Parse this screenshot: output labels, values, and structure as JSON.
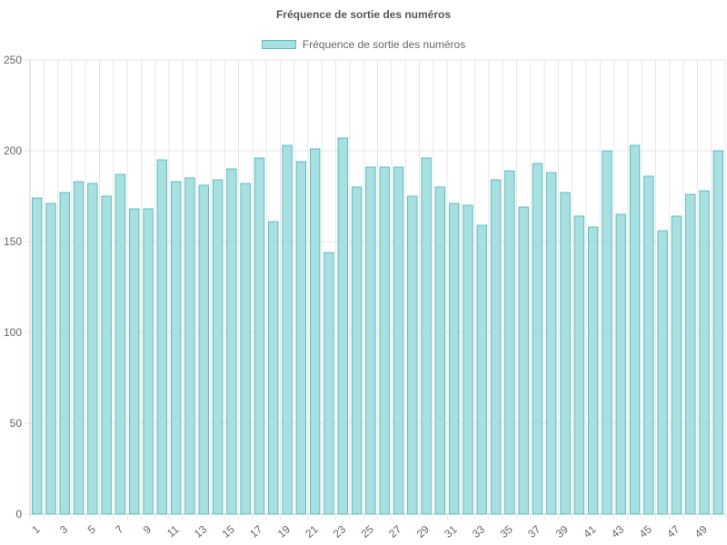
{
  "colors": {
    "bar_fill": "#a8e0e2",
    "bar_stroke": "#5cbcbd",
    "grid": "#e6e6e6",
    "text": "#666666"
  },
  "chart_data": {
    "type": "bar",
    "title": "Fréquence de sortie des numéros",
    "xlabel": "",
    "ylabel": "",
    "ylim": [
      0,
      250
    ],
    "y_ticks": [
      0,
      50,
      100,
      150,
      200,
      250
    ],
    "grid": true,
    "legend_position": "top-center",
    "categories": [
      1,
      2,
      3,
      4,
      5,
      6,
      7,
      8,
      9,
      10,
      11,
      12,
      13,
      14,
      15,
      16,
      17,
      18,
      19,
      20,
      21,
      22,
      23,
      24,
      25,
      26,
      27,
      28,
      29,
      30,
      31,
      32,
      33,
      34,
      35,
      36,
      37,
      38,
      39,
      40,
      41,
      42,
      43,
      44,
      45,
      46,
      47,
      48,
      49,
      50
    ],
    "x_tick_labels": [
      "1",
      "3",
      "5",
      "7",
      "9",
      "11",
      "13",
      "15",
      "17",
      "19",
      "21",
      "23",
      "25",
      "27",
      "29",
      "31",
      "33",
      "35",
      "37",
      "39",
      "41",
      "43",
      "45",
      "47",
      "49"
    ],
    "series": [
      {
        "name": "Fréquence de sortie des numéros",
        "values": [
          174,
          171,
          177,
          183,
          182,
          175,
          187,
          168,
          168,
          195,
          183,
          185,
          181,
          184,
          190,
          182,
          196,
          161,
          203,
          194,
          201,
          144,
          207,
          180,
          191,
          191,
          191,
          175,
          196,
          180,
          171,
          170,
          159,
          184,
          189,
          169,
          193,
          188,
          177,
          164,
          158,
          200,
          165,
          203,
          186,
          156,
          164,
          176,
          178,
          200
        ]
      }
    ]
  }
}
